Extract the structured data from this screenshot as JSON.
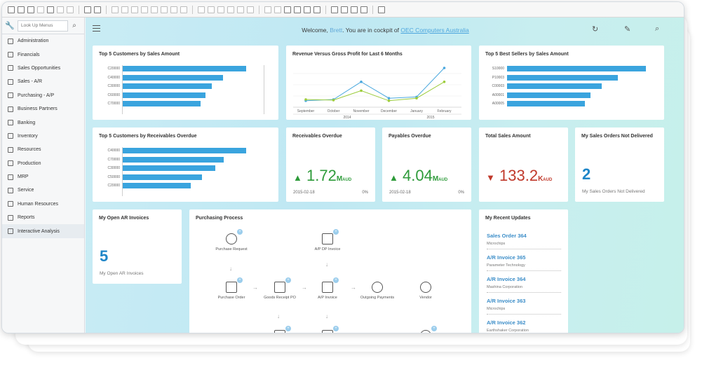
{
  "search": {
    "placeholder": "Look Up Menus"
  },
  "sidebar": {
    "items": [
      {
        "label": "Administration"
      },
      {
        "label": "Financials"
      },
      {
        "label": "Sales Opportunities"
      },
      {
        "label": "Sales - A/R"
      },
      {
        "label": "Purchasing - A/P"
      },
      {
        "label": "Business Partners"
      },
      {
        "label": "Banking"
      },
      {
        "label": "Inventory"
      },
      {
        "label": "Resources"
      },
      {
        "label": "Production"
      },
      {
        "label": "MRP"
      },
      {
        "label": "Service"
      },
      {
        "label": "Human Resources"
      },
      {
        "label": "Reports"
      },
      {
        "label": "Interactive Analysis"
      }
    ]
  },
  "header": {
    "welcome_prefix": "Welcome,",
    "user": "Brett",
    "welcome_mid": ". You are in cockpit of",
    "company": "OEC Computers Australia"
  },
  "cards": {
    "top_customers": {
      "title": "Top 5 Customers by Sales Amount",
      "labels": [
        "C20000",
        "C40000",
        "C30000",
        "C60000",
        "C70000"
      ],
      "values": [
        100,
        81,
        72,
        67,
        63
      ]
    },
    "revenue_profit": {
      "title": "Revenue Versus Gross Profit for Last 6 Months",
      "months": [
        "September",
        "October",
        "November",
        "December",
        "January",
        "February"
      ],
      "year_2014": "2014",
      "year_2015": "2015",
      "revenue": [
        8,
        10,
        38,
        12,
        14,
        60
      ],
      "profit": [
        10,
        9,
        24,
        8,
        12,
        38
      ],
      "revenue_color": "#4aa8de",
      "profit_color": "#9ccc3c"
    },
    "best_sellers": {
      "title": "Top 5 Best Sellers by Sales Amount",
      "labels": [
        "S10000",
        "P10003",
        "C00003",
        "A00001",
        "A00005"
      ],
      "values": [
        100,
        80,
        68,
        60,
        56
      ]
    },
    "receivables_customers": {
      "title": "Top 5 Customers by Receivables Overdue",
      "labels": [
        "C40000",
        "C70000",
        "C30000",
        "C50000",
        "C20000"
      ],
      "values": [
        100,
        82,
        75,
        64,
        55
      ]
    },
    "receivables_overdue": {
      "title": "Receivables Overdue",
      "value": "1.72",
      "unit": "M",
      "currency": "AUD",
      "date": "2015-02-18",
      "pct": "0%"
    },
    "payables_overdue": {
      "title": "Payables Overdue",
      "value": "4.04",
      "unit": "M",
      "currency": "AUD",
      "date": "2015-02-18",
      "pct": "0%"
    },
    "total_sales": {
      "title": "Total Sales Amount",
      "value": "133.2",
      "unit": "K",
      "currency": "AUD"
    },
    "not_delivered": {
      "title": "My Sales Orders Not Delivered",
      "value": "2",
      "sub": "My Sales Orders Not Delivered"
    },
    "open_ar": {
      "title": "My Open AR Invoices",
      "value": "5",
      "sub": "My Open AR Invoices"
    },
    "purchasing": {
      "title": "Purchasing Process",
      "nodes": {
        "purchase_request": "Purchase Request",
        "ap_dp_invoice": "A/P DP Invoice",
        "purchase_order": "Purchase Order",
        "goods_receipt": "Goods Receipt PO",
        "ap_invoice": "A/P Invoice",
        "outgoing_payments": "Outgoing Payments",
        "vendor": "Vendor"
      }
    },
    "recent_updates": {
      "title": "My Recent Updates",
      "items": [
        {
          "title": "Sales Order 364",
          "sub": "Microchips"
        },
        {
          "title": "A/R Invoice 365",
          "sub": "Parameter Technology"
        },
        {
          "title": "A/R Invoice 364",
          "sub": "Mashina Corporation"
        },
        {
          "title": "A/R Invoice 363",
          "sub": "Microchips"
        },
        {
          "title": "A/R Invoice 362",
          "sub": "Earthshaker Corporation"
        }
      ]
    }
  },
  "colors": {
    "accent": "#3aa4de",
    "up": "#2e9b3a",
    "down": "#c0392b",
    "number": "#1f86c8"
  }
}
